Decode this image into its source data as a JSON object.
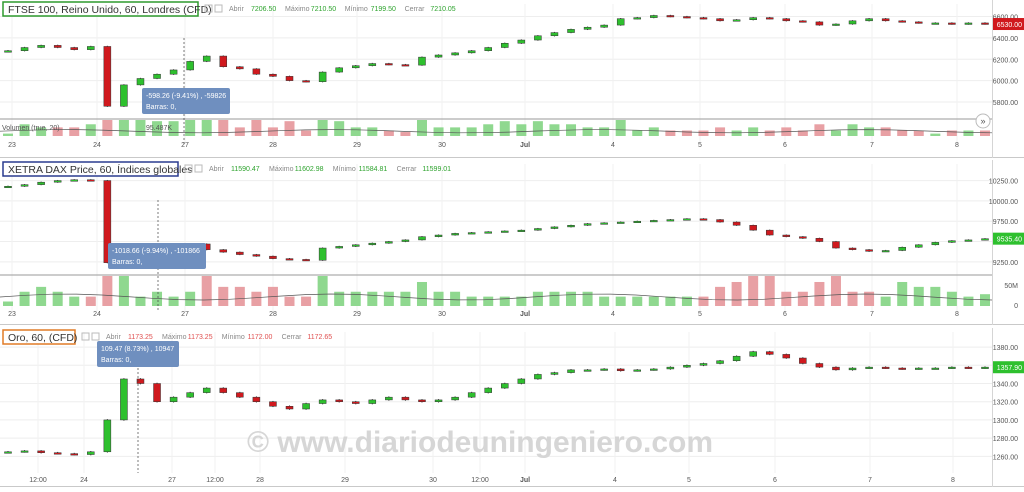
{
  "colors": {
    "up": "#2ec02e",
    "down": "#d0191e",
    "vol_up": "#8fd88f",
    "vol_down": "#e8a0a4",
    "ftse_border": "#2e9a2e",
    "dax_border": "#2a3b8f",
    "oro_border": "#e07b27",
    "tooltip": "#6f8fbf",
    "axis_text": "#555555",
    "legend_val": "#2ea32e",
    "legend_val_red": "#e05050"
  },
  "panes": [
    {
      "symbol": "FTSE 100, Reino Unido, 60, Londres (CFD)",
      "legend": [
        [
          "Abrir",
          "7206.50"
        ],
        [
          "Máximo",
          "7210.50"
        ],
        [
          "Mínimo",
          "7199.50"
        ],
        [
          "Cerrar",
          "7210.05"
        ]
      ],
      "price_ticks": [
        "6600.00",
        "6400.00",
        "6200.00",
        "6000.00",
        "5800.00"
      ],
      "price_tag": "6530.00",
      "tooltip_line1": "-598.26 (-9.41%) , -59826",
      "tooltip_line2": "Barras: 0,",
      "volume_label": "Volumen (true, 20)",
      "volume_value": "95.487K",
      "date_labels": [
        "23",
        "24",
        "27",
        "28",
        "29",
        "30",
        "Jul",
        "4",
        "5",
        "6",
        "7",
        "8"
      ],
      "collapse_icon": "double-chevron-right-icon",
      "chart_data": {
        "type": "candlestick",
        "ylim": [
          5650,
          6680
        ],
        "series": [
          6280,
          6310,
          6330,
          6310,
          6290,
          6320,
          5760,
          5960,
          6020,
          6060,
          6100,
          6180,
          6230,
          6130,
          6110,
          6060,
          6040,
          6000,
          5990,
          6080,
          6120,
          6140,
          6160,
          6150,
          6145,
          6220,
          6240,
          6260,
          6280,
          6310,
          6350,
          6380,
          6420,
          6450,
          6480,
          6500,
          6520,
          6580,
          6590,
          6610,
          6600,
          6590,
          6580,
          6560,
          6570,
          6590,
          6580,
          6560,
          6550,
          6520,
          6530,
          6560,
          6580,
          6560,
          6550,
          6540,
          6540,
          6530,
          6540,
          6530
        ]
      }
    },
    {
      "symbol": "XETRA DAX Price, 60, Índices globales",
      "legend": [
        [
          "Abrir",
          "11590.47"
        ],
        [
          "Máximo",
          "11602.98"
        ],
        [
          "Mínimo",
          "11584.81"
        ],
        [
          "Cerrar",
          "11599.01"
        ]
      ],
      "price_ticks": [
        "10250.00",
        "10000.00",
        "9750.00",
        "9500.00",
        "9250.00"
      ],
      "price_tag": "9535.40",
      "tooltip_line1": "-1018.66 (-9.94%) , -101866",
      "tooltip_line2": "Barras: 0,",
      "volume_label": "",
      "volume_ticks": [
        "50M",
        "0"
      ],
      "date_labels": [
        "23",
        "24",
        "27",
        "28",
        "29",
        "30",
        "Jul",
        "4",
        "5",
        "6",
        "7",
        "8"
      ],
      "chart_data": {
        "type": "candlestick",
        "ylim": [
          9150,
          10380
        ],
        "series": [
          10180,
          10200,
          10230,
          10250,
          10260,
          10250,
          9240,
          9410,
          9420,
          9440,
          9450,
          9470,
          9400,
          9370,
          9340,
          9320,
          9290,
          9280,
          9270,
          9420,
          9440,
          9460,
          9480,
          9500,
          9520,
          9560,
          9580,
          9600,
          9610,
          9620,
          9630,
          9640,
          9660,
          9680,
          9700,
          9720,
          9730,
          9740,
          9750,
          9760,
          9770,
          9780,
          9770,
          9740,
          9700,
          9640,
          9580,
          9560,
          9540,
          9500,
          9420,
          9400,
          9380,
          9390,
          9430,
          9460,
          9490,
          9510,
          9520,
          9535
        ]
      }
    },
    {
      "symbol": "Oro, 60, (CFD)",
      "legend": [
        [
          "Abrir",
          "1173.25"
        ],
        [
          "Máximo",
          "1173.25"
        ],
        [
          "Mínimo",
          "1172.00"
        ],
        [
          "Cerrar",
          "1172.65"
        ]
      ],
      "price_ticks": [
        "1380.00",
        "1360.00",
        "1340.00",
        "1320.00",
        "1300.00",
        "1280.00",
        "1260.00"
      ],
      "price_tag": "1357.90",
      "tooltip_line1": "109.47 (8.73%) , 10947",
      "tooltip_line2": "Barras: 0,",
      "date_labels": [
        "12:00",
        "24",
        "27",
        "12:00",
        "28",
        "29",
        "30",
        "12:00",
        "Jul",
        "4",
        "5",
        "6",
        "7",
        "8"
      ],
      "watermark": "© www.diariodeuningeniero.com",
      "chart_data": {
        "type": "candlestick",
        "ylim": [
          1245,
          1390
        ],
        "series": [
          1265,
          1266,
          1264,
          1263,
          1262,
          1265,
          1300,
          1345,
          1340,
          1320,
          1325,
          1330,
          1335,
          1330,
          1325,
          1320,
          1315,
          1312,
          1318,
          1322,
          1320,
          1318,
          1322,
          1325,
          1322,
          1320,
          1322,
          1325,
          1330,
          1335,
          1340,
          1345,
          1350,
          1352,
          1355,
          1355,
          1356,
          1354,
          1355,
          1356,
          1358,
          1360,
          1362,
          1365,
          1370,
          1375,
          1372,
          1368,
          1362,
          1358,
          1355,
          1357,
          1358,
          1357,
          1356,
          1357,
          1357,
          1358,
          1357,
          1358
        ]
      }
    }
  ]
}
